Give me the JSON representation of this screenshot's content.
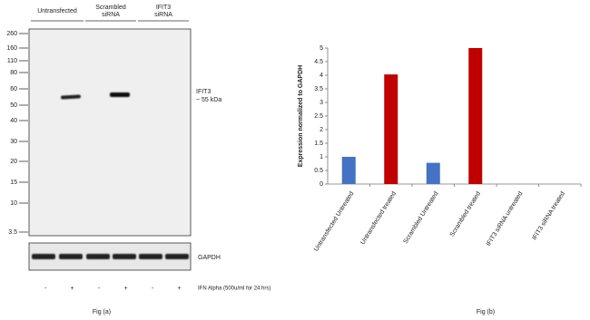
{
  "blot": {
    "groups": [
      "Untransfected",
      "Scrambled",
      "siRNA",
      "IFIT3",
      "siRNA"
    ],
    "markers": [
      260,
      160,
      110,
      80,
      60,
      50,
      40,
      30,
      20,
      15,
      10,
      3.5
    ],
    "band_label": [
      "IFIT3",
      "~ 55 kDa"
    ],
    "loading_label": "GAPDH",
    "treatment": [
      "-",
      "+",
      "-",
      "+",
      "-",
      "+"
    ],
    "treatment_label": "IFN Alpha (500u/ml for 24 hrs)",
    "caption": "Fig (a)"
  },
  "chart_data": {
    "type": "bar",
    "ylabel": "Expression normalized to GAPDH",
    "categories": [
      "Untransfected Untreated",
      "Untransfected treated",
      "Scrambled Untreated",
      "Scrambled treated",
      "IFIT3 siRNA untreated",
      "IFIT3 siRNA treated"
    ],
    "values": [
      1,
      4.03,
      0.78,
      5,
      0,
      0
    ],
    "colors": [
      "#4472c4",
      "#c00000",
      "#4472c4",
      "#c00000",
      "#4472c4",
      "#c00000"
    ],
    "ylim": [
      0,
      5
    ],
    "yticks": [
      0,
      0.5,
      1,
      1.5,
      2,
      2.5,
      3,
      3.5,
      4,
      4.5,
      5
    ],
    "caption": "Fig (b)"
  }
}
